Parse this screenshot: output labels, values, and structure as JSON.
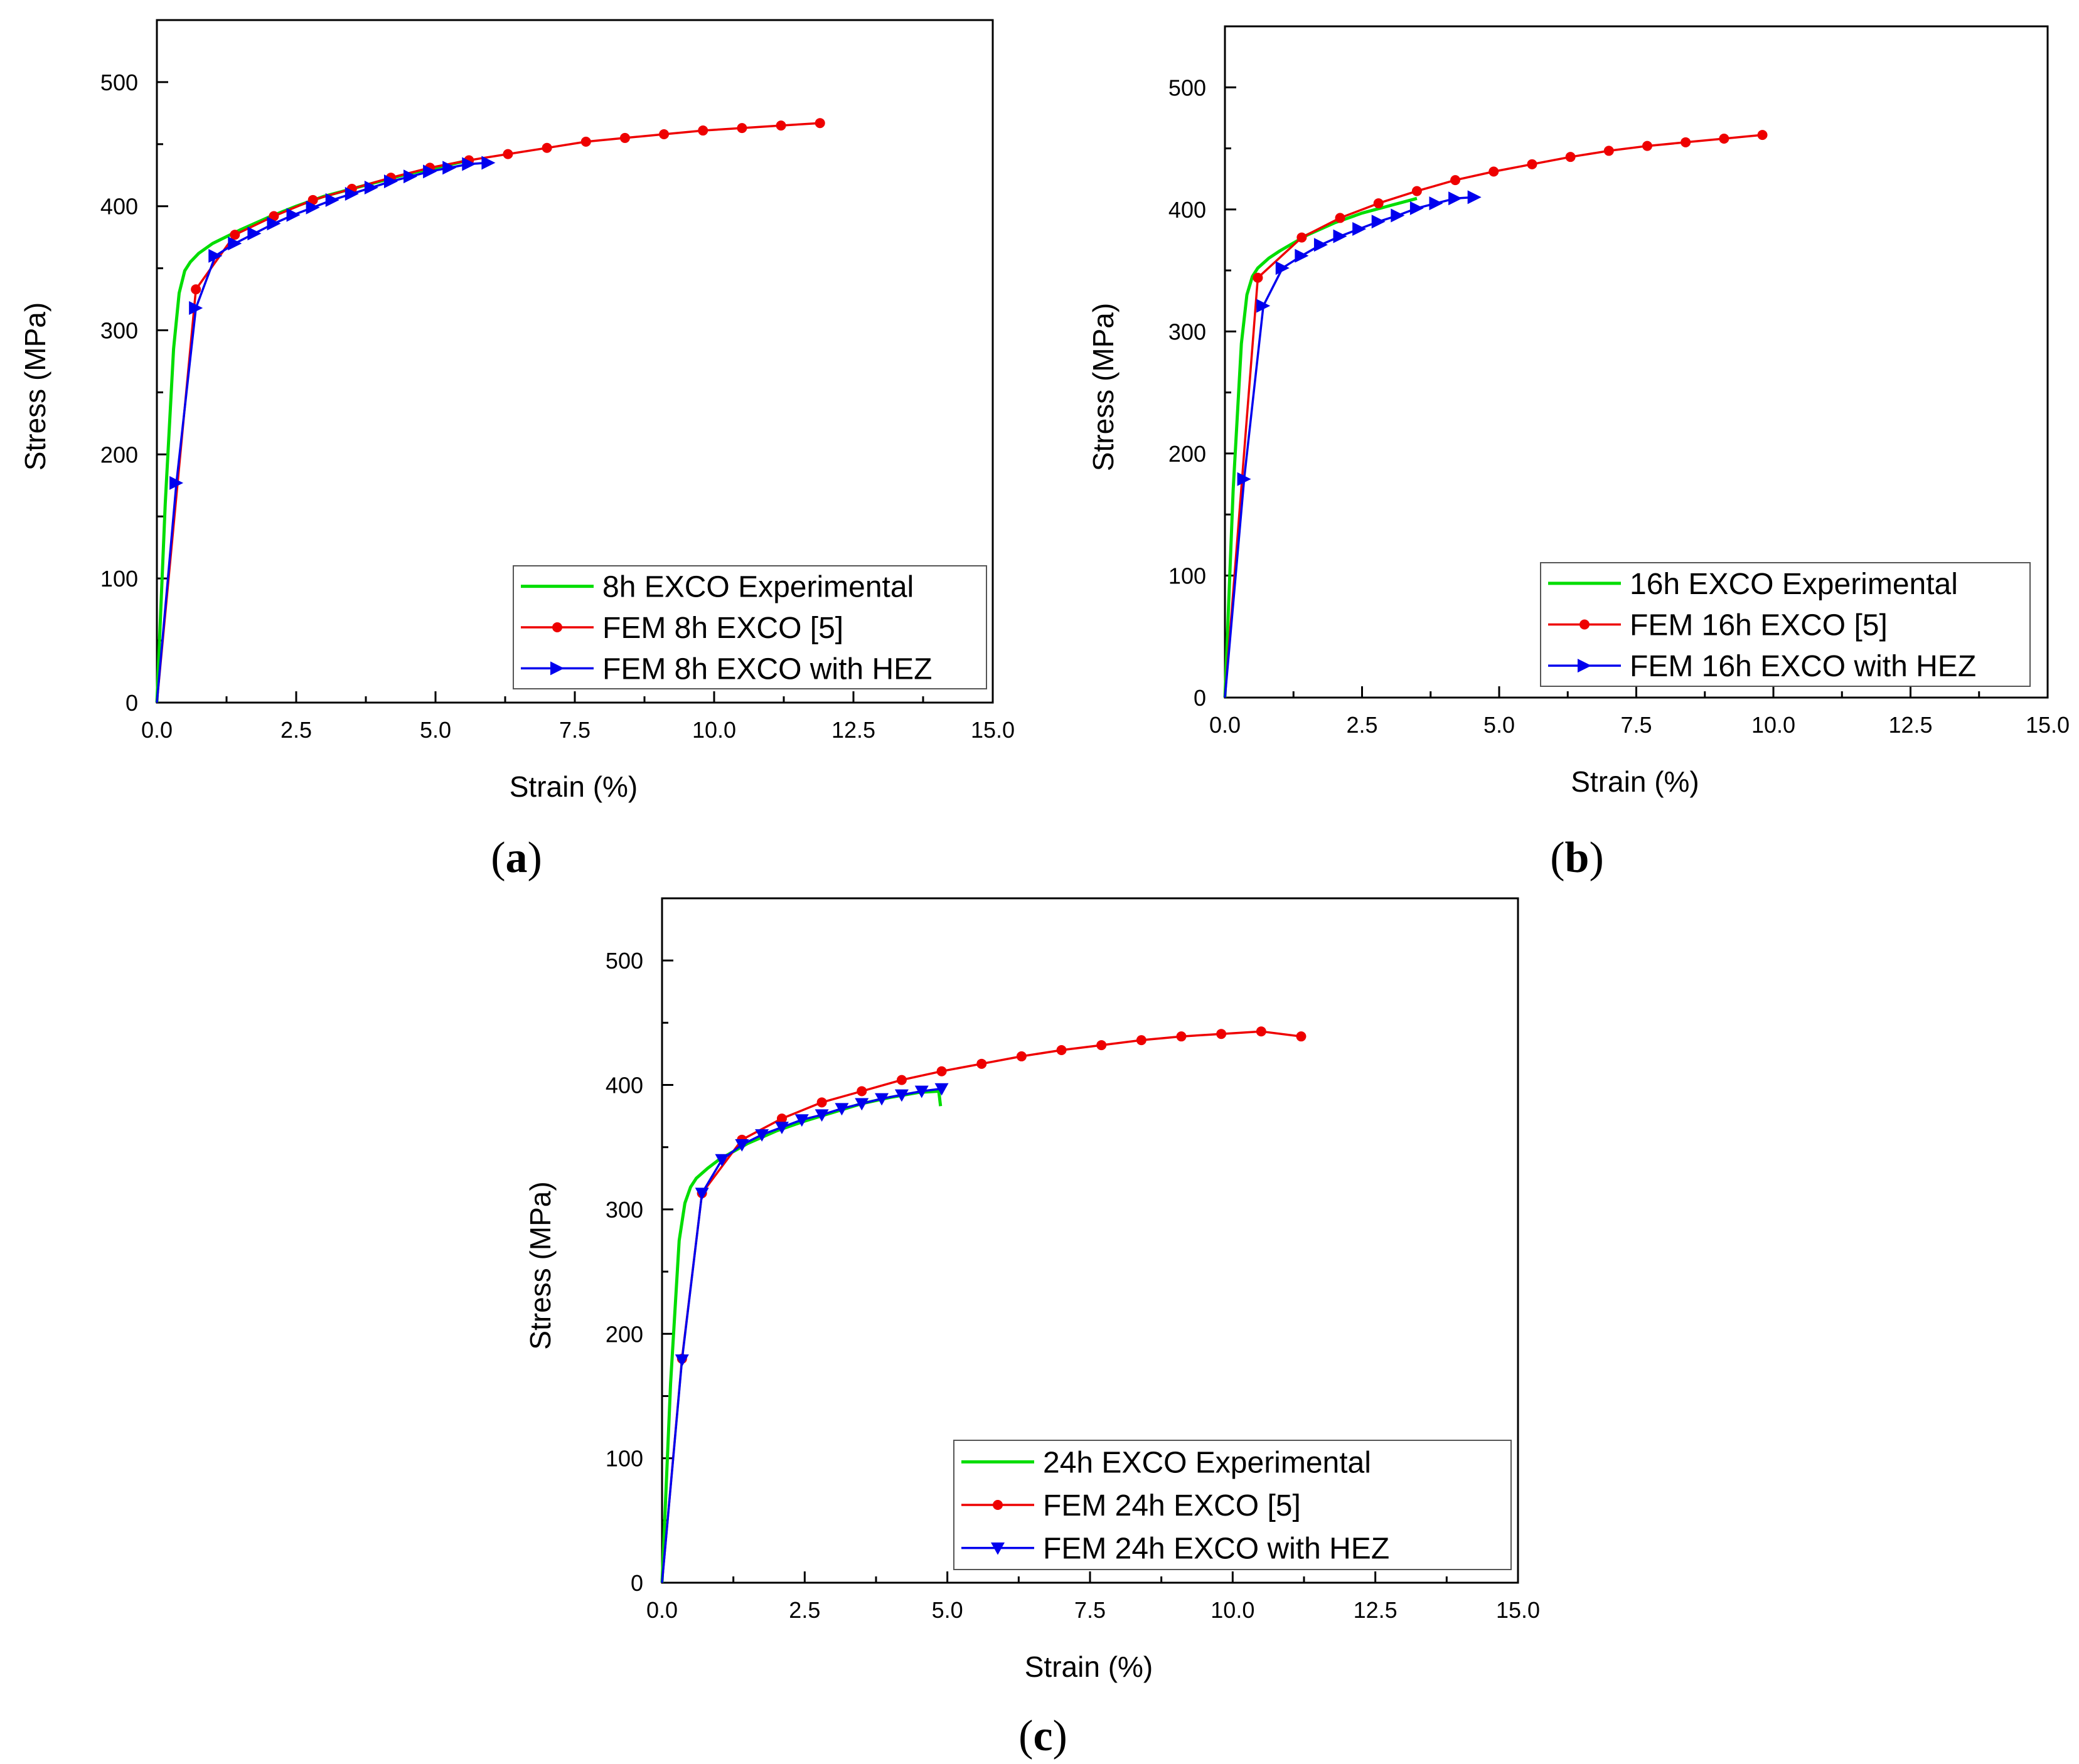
{
  "colors": {
    "experimental": "#00dd00",
    "fem": "#ee0000",
    "hez": "#0000ee",
    "axis": "#000000"
  },
  "chart_data": [
    {
      "type": "line",
      "panel_label": "a",
      "xlabel": "Strain (%)",
      "ylabel": "Stress (MPa)",
      "xlim": [
        0,
        15
      ],
      "ylim": [
        0,
        550
      ],
      "xticks": [
        "0.0",
        "2.5",
        "5.0",
        "7.5",
        "10.0",
        "12.5",
        "15.0"
      ],
      "yticks": [
        "0",
        "100",
        "200",
        "300",
        "400",
        "500"
      ],
      "legend_position": "bottom-right",
      "series": [
        {
          "name": "8h EXCO Experimental",
          "marker": "none",
          "x": [
            0,
            0.15,
            0.3,
            0.4,
            0.5,
            0.6,
            0.75,
            1.0,
            1.5,
            2.0,
            2.5,
            3.0,
            3.5,
            4.0,
            4.5,
            5.0,
            5.5
          ],
          "y": [
            0,
            160,
            285,
            330,
            348,
            355,
            362,
            370,
            381,
            391,
            400,
            408,
            414,
            420,
            426,
            431,
            436
          ]
        },
        {
          "name": "FEM 8h EXCO [5]",
          "marker": "circle",
          "x": [
            0,
            0.7,
            1.4,
            2.1,
            2.8,
            3.5,
            4.2,
            4.9,
            5.6,
            6.3,
            7.0,
            7.7,
            8.4,
            9.1,
            9.8,
            10.5,
            11.2,
            11.9
          ],
          "y": [
            0,
            333,
            377,
            392,
            405,
            414,
            423,
            431,
            437,
            442,
            447,
            452,
            455,
            458,
            461,
            463,
            465,
            467
          ]
        },
        {
          "name": "FEM 8h EXCO with HEZ",
          "marker": "triangle-right",
          "x": [
            0,
            0.35,
            0.7,
            1.05,
            1.4,
            1.75,
            2.1,
            2.45,
            2.8,
            3.15,
            3.5,
            3.85,
            4.2,
            4.55,
            4.9,
            5.25,
            5.6,
            5.95
          ],
          "y": [
            0,
            177,
            318,
            360,
            370,
            378,
            386,
            393,
            399,
            405,
            410,
            415,
            420,
            424,
            428,
            431,
            434,
            435
          ]
        }
      ]
    },
    {
      "type": "line",
      "panel_label": "b",
      "xlabel": "Strain (%)",
      "ylabel": "Stress (MPa)",
      "xlim": [
        0,
        15
      ],
      "ylim": [
        0,
        550
      ],
      "xticks": [
        "0.0",
        "2.5",
        "5.0",
        "7.5",
        "10.0",
        "12.5",
        "15.0"
      ],
      "yticks": [
        "0",
        "100",
        "200",
        "300",
        "400",
        "500"
      ],
      "legend_position": "bottom-right",
      "series": [
        {
          "name": "16h EXCO Experimental",
          "marker": "none",
          "x": [
            0,
            0.15,
            0.3,
            0.4,
            0.5,
            0.6,
            0.8,
            1.0,
            1.5,
            2.0,
            2.5,
            3.0,
            3.5
          ],
          "y": [
            0,
            170,
            290,
            330,
            345,
            352,
            360,
            366,
            379,
            389,
            397,
            403,
            409
          ]
        },
        {
          "name": "FEM 16h EXCO [5]",
          "marker": "circle",
          "x": [
            0,
            0.6,
            1.4,
            2.1,
            2.8,
            3.5,
            4.2,
            4.9,
            5.6,
            6.3,
            7.0,
            7.7,
            8.4,
            9.1,
            9.8
          ],
          "y": [
            0,
            344,
            377,
            393,
            405,
            415,
            424,
            431,
            437,
            443,
            448,
            452,
            455,
            458,
            461
          ]
        },
        {
          "name": "FEM 16h EXCO with HEZ",
          "marker": "triangle-right",
          "x": [
            0,
            0.35,
            0.7,
            1.05,
            1.4,
            1.75,
            2.1,
            2.45,
            2.8,
            3.15,
            3.5,
            3.85,
            4.2,
            4.55
          ],
          "y": [
            0,
            179,
            321,
            352,
            362,
            371,
            378,
            384,
            390,
            395,
            401,
            405,
            409,
            410
          ]
        }
      ]
    },
    {
      "type": "line",
      "panel_label": "c",
      "xlabel": "Strain (%)",
      "ylabel": "Stress (MPa)",
      "xlim": [
        0,
        15
      ],
      "ylim": [
        0,
        550
      ],
      "xticks": [
        "0.0",
        "2.5",
        "5.0",
        "7.5",
        "10.0",
        "12.5",
        "15.0"
      ],
      "yticks": [
        "0",
        "100",
        "200",
        "300",
        "400",
        "500"
      ],
      "legend_position": "bottom-right",
      "series": [
        {
          "name": "24h EXCO Experimental",
          "marker": "none",
          "x": [
            0,
            0.15,
            0.3,
            0.4,
            0.5,
            0.6,
            0.8,
            1.0,
            1.5,
            2.0,
            2.5,
            3.0,
            3.5,
            4.0,
            4.5,
            4.85,
            4.88
          ],
          "y": [
            0,
            160,
            275,
            305,
            318,
            325,
            333,
            340,
            353,
            363,
            371,
            378,
            385,
            390,
            394,
            395,
            383
          ]
        },
        {
          "name": "FEM 24h EXCO [5]",
          "marker": "circle",
          "x": [
            0,
            0.35,
            0.7,
            1.4,
            2.1,
            2.8,
            3.5,
            4.2,
            4.9,
            5.6,
            6.3,
            7.0,
            7.7,
            8.4,
            9.1,
            9.8,
            10.5,
            11.2
          ],
          "y": [
            0,
            180,
            313,
            356,
            373,
            386,
            395,
            404,
            411,
            417,
            423,
            428,
            432,
            436,
            439,
            441,
            443,
            439
          ]
        },
        {
          "name": "FEM 24h EXCO with HEZ",
          "marker": "triangle-down",
          "x": [
            0,
            0.35,
            0.7,
            1.05,
            1.4,
            1.75,
            2.1,
            2.45,
            2.8,
            3.15,
            3.5,
            3.85,
            4.2,
            4.55,
            4.9
          ],
          "y": [
            0,
            179,
            313,
            340,
            352,
            360,
            366,
            372,
            376,
            381,
            385,
            389,
            392,
            395,
            397
          ]
        }
      ]
    }
  ]
}
